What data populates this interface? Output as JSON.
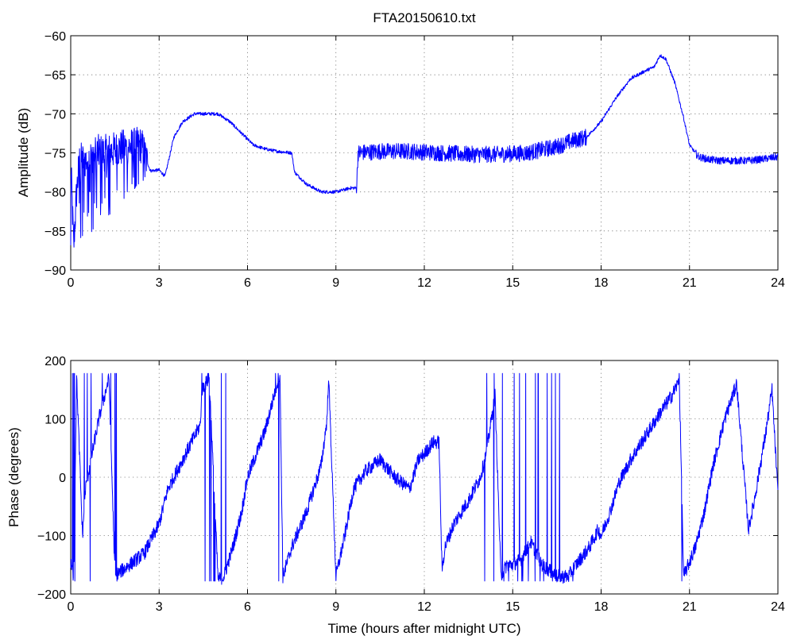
{
  "chart_data": [
    {
      "type": "line",
      "title": "FTA20150610.txt",
      "xlabel": "",
      "ylabel": "Amplitude (dB)",
      "xlim": [
        0,
        24
      ],
      "ylim": [
        -90,
        -60
      ],
      "xticks": [
        0,
        3,
        6,
        9,
        12,
        15,
        18,
        21,
        24
      ],
      "yticks": [
        -90,
        -85,
        -80,
        -75,
        -70,
        -65,
        -60
      ],
      "xtick_labels": [
        "0",
        "3",
        "6",
        "9",
        "12",
        "15",
        "18",
        "21",
        "24"
      ],
      "ytick_labels": [
        "−90",
        "−85",
        "−80",
        "−75",
        "−70",
        "−65",
        "−60"
      ],
      "grid": true,
      "color": "#0000ff",
      "series": [
        {
          "x": [
            0,
            0.1,
            0.2,
            0.3,
            0.5,
            0.8,
            1.2,
            1.6,
            2.0,
            2.4,
            2.7,
            3.0,
            3.2,
            3.5,
            3.8,
            4.2,
            4.6,
            5.0,
            5.4,
            5.8,
            6.2,
            6.6,
            7.0,
            7.5,
            7.6,
            8.0,
            8.5,
            9.0,
            9.5,
            9.7,
            9.75,
            10.5,
            11.5,
            12.5,
            13.5,
            14.5,
            15.5,
            16.5,
            17.0,
            17.5,
            18.0,
            18.5,
            19.0,
            19.5,
            19.8,
            20.0,
            20.2,
            20.5,
            20.8,
            21.0,
            21.3,
            21.6,
            22.0,
            22.5,
            23.0,
            23.5,
            24.0
          ],
          "y": [
            -76,
            -87,
            -80,
            -76,
            -76,
            -75,
            -75,
            -74.5,
            -74.2,
            -74,
            -77.3,
            -77.2,
            -78,
            -73,
            -71,
            -70,
            -70,
            -70,
            -71,
            -72.5,
            -74,
            -74.5,
            -74.8,
            -75,
            -77.5,
            -79,
            -80,
            -80,
            -79.5,
            -79.5,
            -75,
            -74.8,
            -74.8,
            -75,
            -75.2,
            -75.2,
            -75,
            -74.2,
            -73.5,
            -73,
            -71,
            -68,
            -65.5,
            -64.5,
            -64,
            -62.5,
            -63,
            -66,
            -70.5,
            -74,
            -75.5,
            -75.8,
            -76,
            -76,
            -76,
            -75.8,
            -75.5
          ],
          "noise": [
            {
              "from": 0,
              "to": 2.6,
              "amp": 4
            },
            {
              "from": 9.7,
              "to": 17.5,
              "amp": 1.8
            },
            {
              "from": 21.2,
              "to": 24,
              "amp": 0.8
            }
          ]
        }
      ]
    },
    {
      "type": "line",
      "title": "",
      "xlabel": "Time (hours after midnight UTC)",
      "ylabel": "Phase (degrees)",
      "xlim": [
        0,
        24
      ],
      "ylim": [
        -200,
        200
      ],
      "xticks": [
        0,
        3,
        6,
        9,
        12,
        15,
        18,
        21,
        24
      ],
      "yticks": [
        -200,
        -100,
        0,
        100,
        200
      ],
      "xtick_labels": [
        "0",
        "3",
        "6",
        "9",
        "12",
        "15",
        "18",
        "21",
        "24"
      ],
      "ytick_labels": [
        "−200",
        "−100",
        "0",
        "100",
        "200"
      ],
      "grid": true,
      "color": "#0000ff",
      "series": [
        {
          "x": [
            0,
            0.1,
            0.2,
            0.4,
            0.5,
            0.8,
            1.0,
            1.3,
            1.5,
            1.6,
            2.0,
            2.5,
            3.0,
            3.3,
            3.7,
            4.0,
            4.4,
            4.45,
            4.7,
            5.0,
            5.2,
            5.5,
            5.8,
            6.0,
            6.3,
            6.6,
            6.8,
            7.0,
            7.1,
            7.2,
            7.5,
            8.0,
            8.5,
            8.7,
            8.75,
            9.0,
            9.3,
            9.6,
            10.0,
            10.5,
            11.0,
            11.5,
            11.8,
            12.0,
            12.3,
            12.5,
            12.6,
            12.7,
            13.0,
            13.5,
            13.9,
            14.1,
            14.4,
            14.6,
            14.8,
            15.0,
            15.3,
            15.6,
            16.0,
            16.5,
            16.9,
            17.0,
            17.3,
            17.6,
            17.9,
            18.0,
            18.3,
            18.6,
            19.0,
            19.5,
            20.0,
            20.4,
            20.6,
            20.65,
            20.8,
            21.2,
            21.5,
            21.8,
            22.2,
            22.6,
            23.0,
            23.2,
            23.4,
            23.6,
            23.8,
            24.0
          ],
          "y": [
            -150,
            -170,
            170,
            -100,
            -20,
            60,
            110,
            170,
            -170,
            -165,
            -150,
            -130,
            -80,
            -20,
            20,
            50,
            90,
            150,
            170,
            -175,
            -170,
            -120,
            -60,
            0,
            40,
            80,
            120,
            160,
            175,
            -170,
            -120,
            -60,
            20,
            100,
            175,
            -170,
            -100,
            -20,
            10,
            30,
            0,
            -20,
            30,
            40,
            60,
            60,
            -160,
            -120,
            -80,
            -40,
            0,
            40,
            140,
            -170,
            -150,
            -150,
            -140,
            -110,
            -150,
            -170,
            -170,
            -160,
            -140,
            -120,
            -90,
            -100,
            -60,
            -10,
            30,
            70,
            110,
            140,
            160,
            175,
            -170,
            -120,
            -60,
            20,
            100,
            160,
            -90,
            -40,
            20,
            80,
            150,
            -30
          ],
          "noise": [
            {
              "from": 0,
              "to": 24,
              "amp": 12
            }
          ],
          "flips": [
            {
              "from": 0.05,
              "to": 1.6,
              "count": 14
            },
            {
              "from": 4.4,
              "to": 5.3,
              "count": 12
            },
            {
              "from": 6.8,
              "to": 7.2,
              "count": 3
            },
            {
              "from": 14.0,
              "to": 17.1,
              "count": 30
            },
            {
              "from": 20.6,
              "to": 20.75,
              "count": 2
            }
          ]
        }
      ]
    }
  ]
}
